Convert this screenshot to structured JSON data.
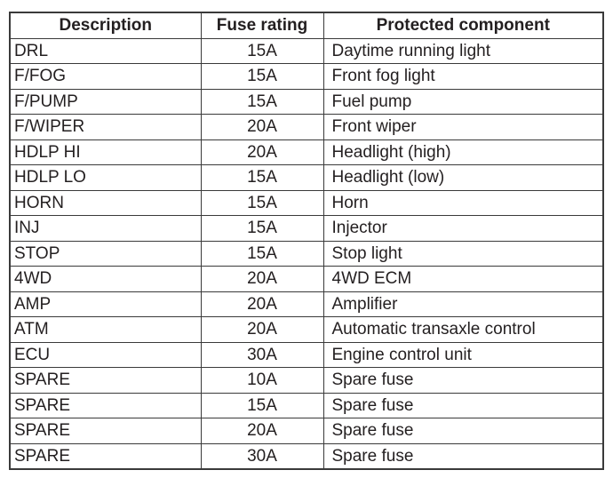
{
  "colors": {
    "background": "#ffffff",
    "border": "#3a3a3a",
    "text": "#231f20"
  },
  "table": {
    "headers": {
      "description": "Description",
      "fuse_rating": "Fuse rating",
      "protected_component": "Protected component"
    },
    "rows": [
      {
        "desc": "DRL",
        "rating": "15A",
        "component": "Daytime running light"
      },
      {
        "desc": "F/FOG",
        "rating": "15A",
        "component": "Front fog light"
      },
      {
        "desc": "F/PUMP",
        "rating": "15A",
        "component": "Fuel pump"
      },
      {
        "desc": "F/WIPER",
        "rating": "20A",
        "component": "Front wiper"
      },
      {
        "desc": "HDLP HI",
        "rating": "20A",
        "component": "Headlight (high)"
      },
      {
        "desc": "HDLP LO",
        "rating": "15A",
        "component": "Headlight (low)"
      },
      {
        "desc": "HORN",
        "rating": "15A",
        "component": "Horn"
      },
      {
        "desc": "INJ",
        "rating": "15A",
        "component": "Injector"
      },
      {
        "desc": "STOP",
        "rating": "15A",
        "component": "Stop light"
      },
      {
        "desc": "4WD",
        "rating": "20A",
        "component": "4WD ECM"
      },
      {
        "desc": "AMP",
        "rating": "20A",
        "component": "Amplifier"
      },
      {
        "desc": "ATM",
        "rating": "20A",
        "component": "Automatic transaxle control"
      },
      {
        "desc": "ECU",
        "rating": "30A",
        "component": "Engine control unit"
      },
      {
        "desc": "SPARE",
        "rating": "10A",
        "component": "Spare fuse"
      },
      {
        "desc": "SPARE",
        "rating": "15A",
        "component": "Spare fuse"
      },
      {
        "desc": "SPARE",
        "rating": "20A",
        "component": "Spare fuse"
      },
      {
        "desc": "SPARE",
        "rating": "30A",
        "component": "Spare fuse"
      }
    ]
  }
}
